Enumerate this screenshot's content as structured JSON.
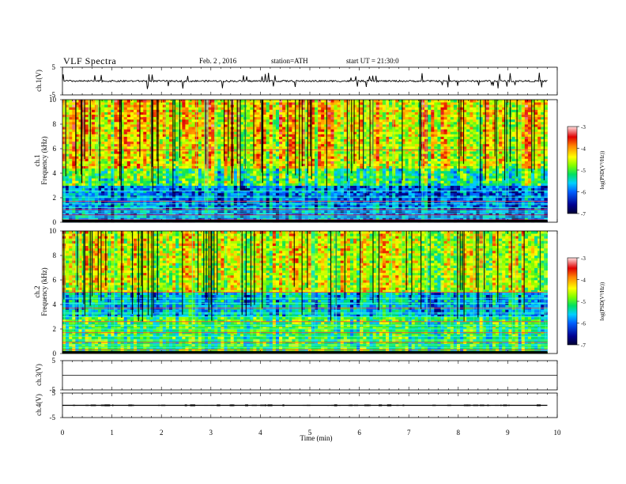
{
  "header": {
    "title": "VLF  Spectra",
    "date": "Feb. 2  , 2016",
    "station": "station=ATH",
    "start": "start  UT  =    21:30:0"
  },
  "chart_data": [
    {
      "type": "line",
      "panel": "ch1-waveform",
      "ylabel": "ch.1(V)",
      "ylim": [
        -5,
        5
      ],
      "yticks": [
        "5",
        "-5"
      ],
      "xlim": [
        0,
        10
      ],
      "series": [
        {
          "baseline": 0,
          "noise_amplitude": 0.3,
          "spike_amplitude": 1.4,
          "color": "#000000"
        }
      ]
    },
    {
      "type": "heatmap",
      "panel": "ch1-spectrogram",
      "ylabel": "Frequency  (kHz)",
      "channel_label": "ch.1",
      "ylim": [
        0,
        10
      ],
      "yticks": [
        "0",
        "2",
        "4",
        "6",
        "8",
        "10"
      ],
      "xlim": [
        0,
        9.8
      ],
      "lines_khz": [
        0.2,
        0.35,
        0.5,
        0.6,
        0.75,
        0.9,
        1.05,
        1.2,
        1.5,
        1.7,
        2.05,
        2.55,
        5.9
      ],
      "colorbar": {
        "label": "log(PSD(V²/Hz))",
        "ticks": [
          "-3",
          "-4",
          "-5",
          "-6",
          "-7"
        ],
        "range": [
          -7,
          -3
        ]
      }
    },
    {
      "type": "heatmap",
      "panel": "ch2-spectrogram",
      "ylabel": "Frequency  (kHz)",
      "channel_label": "ch.2",
      "ylim": [
        0,
        10
      ],
      "yticks": [
        "0",
        "2",
        "4",
        "6",
        "8",
        "10"
      ],
      "xlim": [
        0,
        9.8
      ],
      "lines_khz": [
        0.3,
        0.5,
        0.7,
        0.9,
        1.1,
        1.4,
        1.7,
        2.0,
        2.3,
        2.6,
        3.0,
        3.3,
        3.7,
        4.1,
        4.5,
        5.0
      ],
      "colorbar": {
        "label": "log(PSD(V²/Hz))",
        "ticks": [
          "-3",
          "-4",
          "-5",
          "-6",
          "-7"
        ],
        "range": [
          -7,
          -3
        ]
      }
    },
    {
      "type": "line",
      "panel": "ch3-waveform",
      "ylabel": "ch.3(V)",
      "ylim": [
        -5,
        5
      ],
      "yticks": [
        "5",
        "-5"
      ],
      "xlim": [
        0,
        10
      ],
      "series": [
        {
          "baseline": 0,
          "color": "#000000"
        }
      ]
    },
    {
      "type": "line",
      "panel": "ch4-waveform",
      "ylabel": "ch.4(V)",
      "ylim": [
        -5,
        5
      ],
      "yticks": [
        "5",
        "-5"
      ],
      "xlim": [
        0,
        10
      ],
      "series": [
        {
          "baseline": 0,
          "burst_amplitude": 0.25,
          "color": "#000000"
        }
      ]
    }
  ],
  "xaxis": {
    "label": "Time  (min)",
    "ticks": [
      "0",
      "1",
      "2",
      "3",
      "4",
      "5",
      "6",
      "7",
      "8",
      "9",
      "10"
    ],
    "range": [
      0,
      10
    ]
  }
}
